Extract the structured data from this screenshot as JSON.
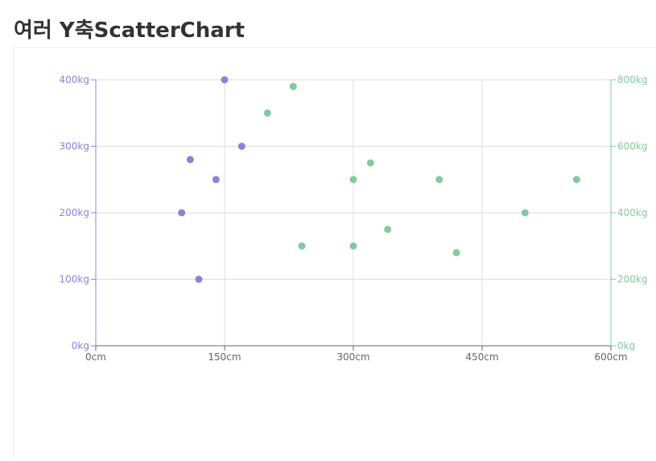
{
  "page": {
    "title": "여러 Y축ScatterChart"
  },
  "chart_data": {
    "type": "scatter",
    "title": "여러 Y축ScatterChart",
    "x_axis": {
      "range": [
        0,
        600
      ],
      "ticks": [
        0,
        150,
        300,
        450,
        600
      ],
      "tick_labels": [
        "0cm",
        "150cm",
        "300cm",
        "450cm",
        "600cm"
      ],
      "unit": "cm"
    },
    "y_axis_left": {
      "range": [
        0,
        400
      ],
      "ticks": [
        0,
        100,
        200,
        300,
        400
      ],
      "tick_labels": [
        "0kg",
        "100kg",
        "200kg",
        "300kg",
        "400kg"
      ],
      "unit": "kg",
      "color": "#8884d8"
    },
    "y_axis_right": {
      "range": [
        0,
        800
      ],
      "ticks": [
        0,
        200,
        400,
        600,
        800
      ],
      "tick_labels": [
        "0kg",
        "200kg",
        "400kg",
        "600kg",
        "800kg"
      ],
      "unit": "kg",
      "color": "#82ca9d"
    },
    "grid": true,
    "series": [
      {
        "axis": "left",
        "color": "#8884d8",
        "points": [
          {
            "x": 100,
            "y": 200
          },
          {
            "x": 120,
            "y": 100
          },
          {
            "x": 170,
            "y": 300
          },
          {
            "x": 140,
            "y": 250
          },
          {
            "x": 150,
            "y": 400
          },
          {
            "x": 110,
            "y": 280
          }
        ]
      },
      {
        "axis": "right",
        "color": "#82ca9d",
        "points": [
          {
            "x": 200,
            "y": 700
          },
          {
            "x": 230,
            "y": 780
          },
          {
            "x": 240,
            "y": 300
          },
          {
            "x": 300,
            "y": 500
          },
          {
            "x": 300,
            "y": 300
          },
          {
            "x": 320,
            "y": 550
          },
          {
            "x": 340,
            "y": 350
          },
          {
            "x": 400,
            "y": 500
          },
          {
            "x": 420,
            "y": 280
          },
          {
            "x": 500,
            "y": 400
          },
          {
            "x": 560,
            "y": 500
          }
        ]
      }
    ]
  }
}
